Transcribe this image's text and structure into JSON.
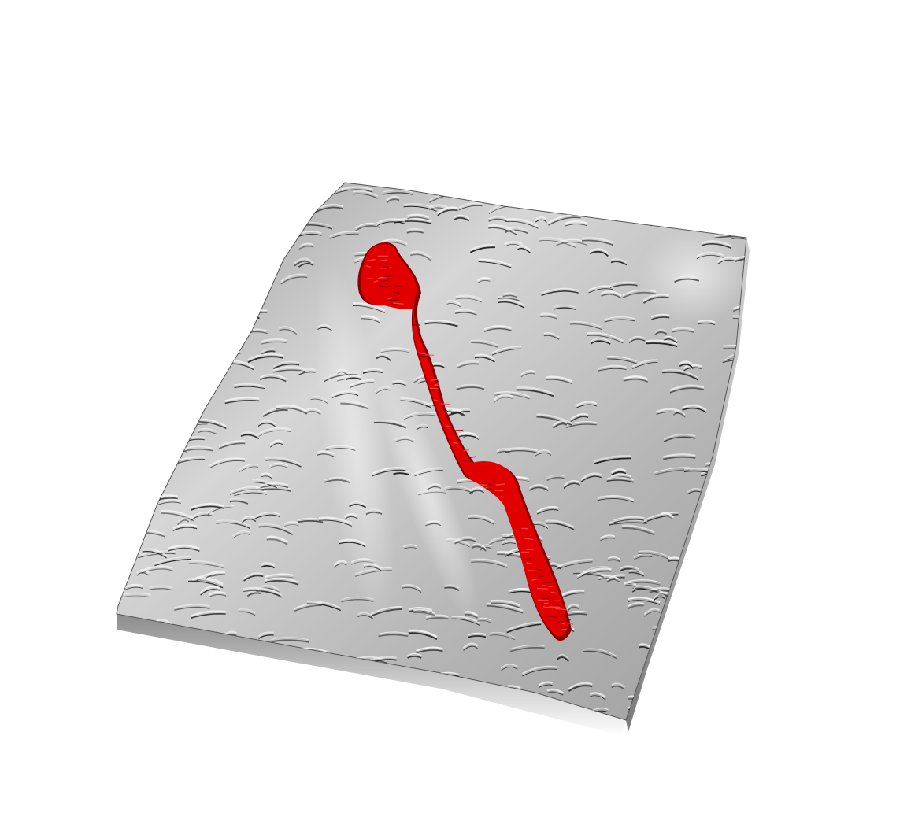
{
  "scene": {
    "kind": "3d-terrain-relief",
    "terrain_color": "#c8c8c8",
    "ridge_color": "#1a1a1a",
    "highlight_color": "#f4f4f4",
    "background_color": "#ffffff"
  },
  "overlay": {
    "kind": "highlighted-corridor",
    "color": "#e00000",
    "dark_color": "#8a0000"
  }
}
